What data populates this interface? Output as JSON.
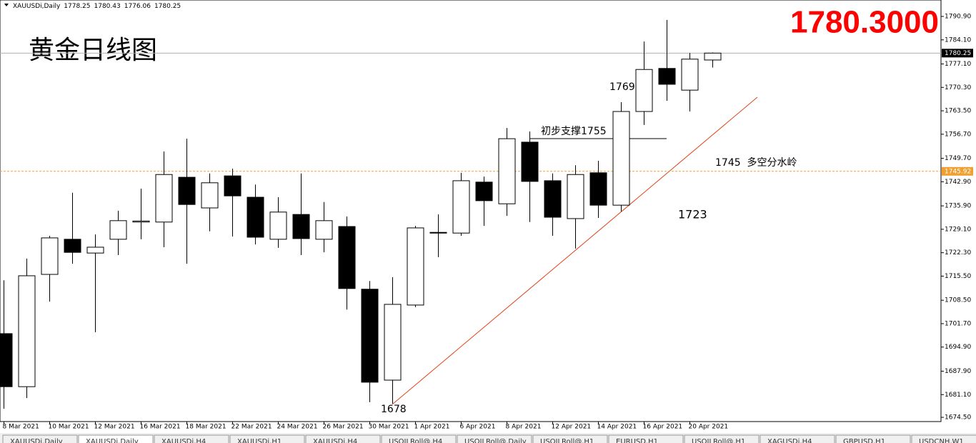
{
  "chart_data": {
    "type": "candlestick",
    "symbol": "XAUUSDi,Daily",
    "header_values": [
      "1778.25",
      "1780.43",
      "1776.06",
      "1780.25"
    ],
    "title": "黄金日线图",
    "price_banner": "1780.3000",
    "annotations": [
      "1769",
      "初步支撑1755",
      "1745  多空分水岭",
      "1723",
      "1678"
    ],
    "categories": [
      "8 Mar 2021",
      null,
      "10 Mar 2021",
      null,
      "12 Mar 2021",
      null,
      "16 Mar 2021",
      null,
      "18 Mar 2021",
      null,
      "22 Mar 2021",
      null,
      "24 Mar 2021",
      null,
      "26 Mar 2021",
      null,
      "30 Mar 2021",
      null,
      "1 Apr 2021",
      null,
      "6 Apr 2021",
      null,
      "8 Apr 2021",
      null,
      "12 Apr 2021",
      null,
      "14 Apr 2021",
      null,
      "16 Apr 2021",
      null,
      "20 Apr 2021",
      null
    ],
    "open": [
      1698.8,
      1683.4,
      1716.0,
      1726.2,
      1722.2,
      1726.2,
      1731.2,
      1731.2,
      1744.2,
      1735.3,
      1744.6,
      1738.4,
      1726.2,
      1733.4,
      1726.2,
      1729.9,
      1711.7,
      1685.3,
      1707.1,
      1728.0,
      1728.0,
      1742.8,
      1736.5,
      1754.4,
      1743.2,
      1732.2,
      1745.5,
      1736.1,
      1763.3,
      1775.8,
      1769.5,
      1778.25
    ],
    "high": [
      1714.3,
      1720.6,
      1727.2,
      1739.7,
      1727.6,
      1734.5,
      1740.9,
      1751.7,
      1755.4,
      1745.3,
      1746.7,
      1742.1,
      1738.4,
      1745.3,
      1737.0,
      1732.8,
      1714.1,
      1715.2,
      1730.1,
      1733.4,
      1745.5,
      1744.4,
      1758.5,
      1757.5,
      1745.3,
      1747.7,
      1749.0,
      1766.0,
      1783.6,
      1789.9,
      1780.3,
      1780.43
    ],
    "low": [
      1677.0,
      1680.1,
      1708.1,
      1719.1,
      1699.2,
      1721.6,
      1726.2,
      1723.9,
      1719.1,
      1728.5,
      1727.0,
      1724.7,
      1723.7,
      1721.6,
      1722.4,
      1705.8,
      1678.9,
      1678.5,
      1706.5,
      1721.0,
      1727.2,
      1730.1,
      1733.0,
      1731.2,
      1727.2,
      1723.5,
      1732.4,
      1734.3,
      1759.4,
      1766.4,
      1763.3,
      1776.06
    ],
    "close": [
      1683.4,
      1715.6,
      1726.6,
      1722.4,
      1723.9,
      1731.6,
      1731.5,
      1745.0,
      1736.3,
      1742.6,
      1738.8,
      1726.8,
      1734.1,
      1726.4,
      1731.6,
      1711.9,
      1684.7,
      1707.3,
      1729.5,
      1728.2,
      1743.2,
      1737.4,
      1755.4,
      1743.0,
      1732.6,
      1745.0,
      1736.1,
      1763.3,
      1775.5,
      1771.2,
      1778.5,
      1780.25
    ],
    "up_color": "#ffffff",
    "down_color": "#000000",
    "current_price": 1780.25,
    "reference_price": 1745.92,
    "ylim": [
      1673.27,
      1795.67
    ],
    "yticks": [
      {
        "value": 1790.9,
        "label": "1790.90"
      },
      {
        "value": 1784.1,
        "label": "1784.10"
      },
      {
        "value": 1777.1,
        "label": "1777.10"
      },
      {
        "value": 1770.3,
        "label": "1770.30"
      },
      {
        "value": 1763.5,
        "label": "1763.50"
      },
      {
        "value": 1756.7,
        "label": "1756.70"
      },
      {
        "value": 1749.7,
        "label": "1749.70"
      },
      {
        "value": 1742.9,
        "label": "1742.90"
      },
      {
        "value": 1735.9,
        "label": "1735.90"
      },
      {
        "value": 1729.1,
        "label": "1729.10"
      },
      {
        "value": 1722.3,
        "label": "1722.30"
      },
      {
        "value": 1715.5,
        "label": "1715.50"
      },
      {
        "value": 1708.5,
        "label": "1708.50"
      },
      {
        "value": 1701.7,
        "label": "1701.70"
      },
      {
        "value": 1694.9,
        "label": "1694.90"
      },
      {
        "value": 1687.9,
        "label": "1687.90"
      },
      {
        "value": 1681.1,
        "label": "1681.10"
      },
      {
        "value": 1674.5,
        "label": "1674.50"
      }
    ],
    "tabs": [
      "XAUUSDi,Daily",
      "XAUUSDi,Daily",
      "XAUUSDi,H4",
      "XAUUSDi,H1",
      "XAUUSDi,H4",
      "USOILRoll@,H4",
      "USOILRoll@,Daily",
      "USOILRoll@,H1",
      "EURUSD,H1",
      "USOILRoll@,H1",
      "XAGUSDi,H4",
      "GBPUSD,H1",
      "USDCNH,W1"
    ]
  }
}
